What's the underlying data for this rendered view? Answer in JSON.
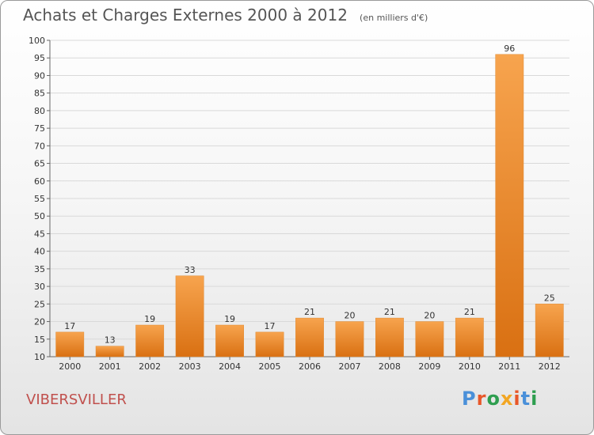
{
  "chart_data": {
    "type": "bar",
    "title": "Achats et Charges Externes 2000 à 2012",
    "unit_note": "(en milliers d'€)",
    "categories": [
      "2000",
      "2001",
      "2002",
      "2003",
      "2004",
      "2005",
      "2006",
      "2007",
      "2008",
      "2009",
      "2010",
      "2011",
      "2012"
    ],
    "values": [
      17,
      13,
      19,
      33,
      19,
      17,
      21,
      20,
      21,
      20,
      21,
      96,
      25
    ],
    "ylim": [
      10,
      100
    ],
    "yticks": [
      10,
      15,
      20,
      25,
      30,
      35,
      40,
      45,
      50,
      55,
      60,
      65,
      70,
      75,
      80,
      85,
      90,
      95,
      100
    ],
    "grid": true,
    "xlabel": "",
    "ylabel": "",
    "bar_color": "#f0902e"
  },
  "footer": {
    "commune": "VIBERSVILLER",
    "logo_text": "Proxiti",
    "logo_colors": [
      "#4a90d9",
      "#e8572a",
      "#2e9e4f",
      "#f2a623",
      "#e8572a",
      "#4a90d9",
      "#2e9e4f"
    ]
  }
}
